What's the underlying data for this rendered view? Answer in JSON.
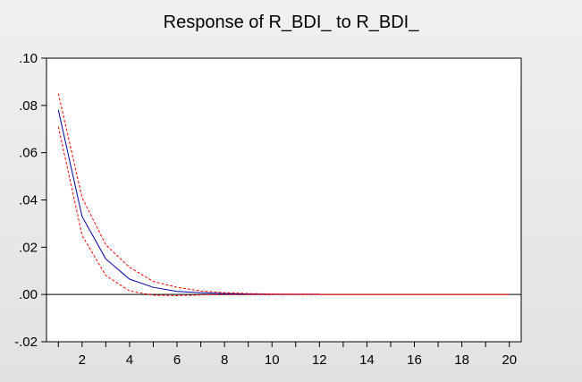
{
  "chart_data": {
    "type": "line",
    "title": "Response of R_BDI_ to R_BDI_",
    "x": [
      1,
      2,
      3,
      4,
      5,
      6,
      7,
      8,
      9,
      10,
      11,
      12,
      13,
      14,
      15,
      16,
      17,
      18,
      19,
      20
    ],
    "xlim": [
      0.5,
      20.5
    ],
    "ylim": [
      -0.02,
      0.1
    ],
    "x_ticks": [
      2,
      4,
      6,
      8,
      10,
      12,
      14,
      16,
      18,
      20
    ],
    "x_tick_labels": [
      "2",
      "4",
      "6",
      "8",
      "10",
      "12",
      "14",
      "16",
      "18",
      "20"
    ],
    "y_ticks": [
      -0.02,
      0.0,
      0.02,
      0.04,
      0.06,
      0.08,
      0.1
    ],
    "y_tick_labels": [
      "-.02",
      ".00",
      ".02",
      ".04",
      ".06",
      ".08",
      ".10"
    ],
    "grid": false,
    "zero_line": true,
    "series": [
      {
        "role": "response",
        "color": "#0000aa",
        "style": "solid",
        "x": [
          1,
          2,
          3,
          4,
          5,
          6,
          7,
          8,
          9,
          10,
          11,
          12
        ],
        "values": [
          0.078,
          0.033,
          0.015,
          0.0065,
          0.003,
          0.0013,
          0.0007,
          0.0004,
          0.0002,
          0.0001,
          0.0001,
          0.0001
        ]
      },
      {
        "role": "upper band",
        "color": "#ff0000",
        "style": "dashed",
        "x": [
          1,
          2,
          3,
          4,
          5,
          6,
          7,
          8,
          9,
          10,
          11,
          12
        ],
        "values": [
          0.085,
          0.041,
          0.021,
          0.0115,
          0.0055,
          0.003,
          0.0015,
          0.0008,
          0.0004,
          0.0002,
          0.0001,
          0.0001
        ]
      },
      {
        "role": "lower band",
        "color": "#ff0000",
        "style": "dashed",
        "x": [
          1,
          2,
          3,
          4,
          5,
          6,
          7,
          8,
          9,
          10,
          11,
          12
        ],
        "values": [
          0.071,
          0.025,
          0.008,
          0.0015,
          -0.0003,
          -0.0005,
          -0.0002,
          0.0,
          0.0,
          0.0,
          0.0,
          0.0
        ]
      },
      {
        "role": "tail",
        "color": "#ff0000",
        "style": "solid",
        "x": [
          12,
          20
        ],
        "values": [
          0.0,
          0.0
        ]
      }
    ]
  }
}
